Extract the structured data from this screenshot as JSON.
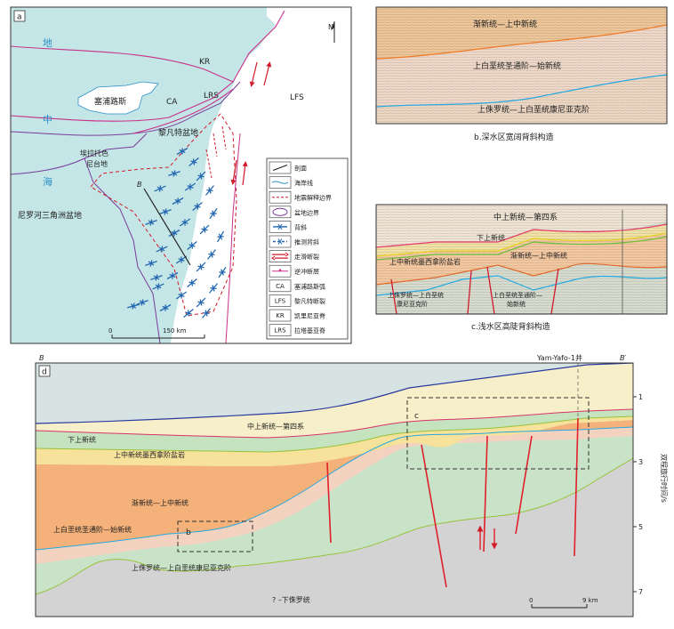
{
  "panel_a": {
    "label": "a",
    "north": "N",
    "sea_chars": [
      "地",
      "中",
      "海"
    ],
    "places": {
      "cyprus": "塞浦路斯",
      "ca": "CA",
      "lrs": "LRS",
      "kr": "KR",
      "lfs": "LFS",
      "levant": "黎凡特盆地",
      "eratosthenes_1": "埃拉托色",
      "eratosthenes_2": "尼台地",
      "nile": "尼罗河三角洲盆地",
      "section": "B"
    },
    "scale": {
      "zero": "0",
      "value": "150 km"
    },
    "legend": [
      {
        "code": "",
        "text": "剖面"
      },
      {
        "code": "",
        "text": "海岸线"
      },
      {
        "code": "",
        "text": "地震解释边界"
      },
      {
        "code": "",
        "text": "盆地边界"
      },
      {
        "code": "",
        "text": "背斜"
      },
      {
        "code": "",
        "text": "推测背斜"
      },
      {
        "code": "",
        "text": "走滑断裂"
      },
      {
        "code": "",
        "text": "逆冲断层"
      },
      {
        "code": "CA",
        "text": "塞浦路斯弧"
      },
      {
        "code": "LFS",
        "text": "黎凡特断裂"
      },
      {
        "code": "KR",
        "text": "凯里尼亚脊"
      },
      {
        "code": "LRS",
        "text": "拉塔基亚脊"
      }
    ],
    "colors": {
      "land": "#ffffff",
      "sea": "#c5e6e6",
      "basin_line": "#7a3c9a",
      "fault": "#d11a2a",
      "anticline": "#2267b0"
    }
  },
  "panel_b": {
    "top": "渐新统—上中新统",
    "mid": "上白垩统圣通阶—始新统",
    "bottom": "上侏罗统—上白垩统康尼亚克阶",
    "caption": "b.深水区宽阔背斜构造"
  },
  "panel_c": {
    "top": "中上新统—第四系",
    "l2": "下上新统",
    "l3": "上中新统墨西拿阶盐岩",
    "l4": "渐新统—上中新统",
    "l5a": "上侏罗统—上白垩统",
    "l5b": "康尼亚克阶",
    "l6a": "上白垩统圣通阶—",
    "l6b": "始新统",
    "caption": "c.浅水区高陡背斜构造"
  },
  "panel_d": {
    "label": "d",
    "left_end": "B",
    "right_end": "B′",
    "well": "Yam-Yafo-1井",
    "box_b": "b",
    "box_c": "c",
    "layers": {
      "q": "中上新统—第四系",
      "lp": "下上新统",
      "salt": "上中新统墨西拿阶盐岩",
      "olig": "渐新统—上中新统",
      "cret": "上白垩统圣通阶—始新统",
      "jur": "上侏罗统—上白垩统康尼亚克阶",
      "base": "? –下侏罗统"
    },
    "axis_title": "双程旅行时间/s",
    "axis_ticks": [
      "1",
      "3",
      "5",
      "7"
    ],
    "scale": {
      "zero": "0",
      "value": "9 km"
    }
  }
}
